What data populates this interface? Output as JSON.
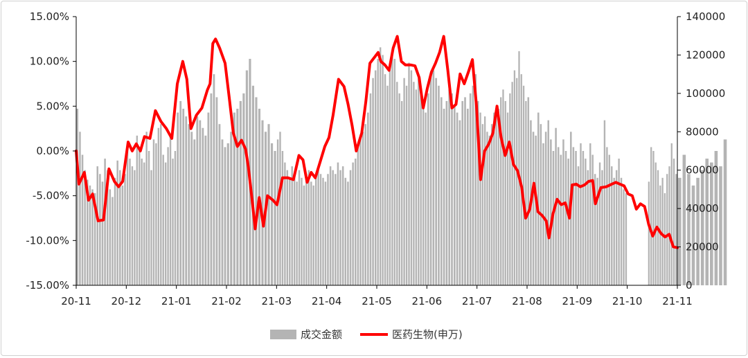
{
  "chart_data": {
    "type": "bar+line",
    "title": "",
    "xlabel": "",
    "ylabel_left": "",
    "ylabel_right": "",
    "left_axis": {
      "min": -15,
      "max": 15,
      "step": 5,
      "tick_labels": [
        "-15.00%",
        "-10.00%",
        "-5.00%",
        "0.00%",
        "5.00%",
        "10.00%",
        "15.00%"
      ]
    },
    "right_axis": {
      "min": 0,
      "max": 140000,
      "step": 20000,
      "tick_labels": [
        "0",
        "20000",
        "40000",
        "60000",
        "80000",
        "100000",
        "120000",
        "140000"
      ]
    },
    "x_tick_labels": [
      "20-11",
      "20-12",
      "21-01",
      "21-02",
      "21-03",
      "21-04",
      "21-05",
      "21-06",
      "21-07",
      "21-08",
      "21-09",
      "21-10",
      "21-11"
    ],
    "grid": false,
    "legend": {
      "position": "bottom-center",
      "items": [
        {
          "label": "成交金额",
          "color": "#b4b4b4",
          "kind": "bar"
        },
        {
          "label": "医药生物(申万)",
          "color": "#ff0000",
          "kind": "line"
        }
      ]
    },
    "series": [
      {
        "name": "成交金额",
        "axis": "right",
        "kind": "bar",
        "color": "#b4b4b4",
        "month_values": [
          [
            92000,
            80000,
            68000,
            60000,
            55000,
            52000,
            50000,
            48000,
            62000,
            58000,
            54000,
            66000,
            60000,
            50000,
            46000,
            56000,
            65000,
            60000,
            52000,
            58000
          ],
          [
            70000,
            66000,
            62000,
            60000,
            78000,
            72000,
            66000,
            64000,
            80000,
            70000,
            60000,
            76000,
            74000,
            82000,
            84000,
            68000,
            64000,
            72000,
            78000,
            66000,
            70000
          ],
          [
            90000,
            96000,
            92000,
            88000,
            84000,
            80000,
            76000,
            88000,
            86000,
            82000,
            78000,
            90000,
            100000,
            110000,
            98000,
            84000,
            76000,
            72000
          ],
          [
            74000,
            80000,
            90000,
            92000,
            96000,
            100000,
            112000,
            118000,
            104000,
            98000,
            92000,
            86000,
            80000,
            84000,
            74000,
            70000
          ],
          [
            76000,
            80000,
            70000,
            64000,
            60000,
            56000,
            62000,
            58000,
            54000,
            60000,
            56000,
            52000,
            58000,
            60000,
            54000,
            52000,
            56000,
            62000,
            58000,
            56000,
            54000
          ],
          [
            58000,
            62000,
            60000,
            58000,
            64000,
            60000,
            62000,
            56000,
            54000,
            60000,
            64000,
            66000,
            72000,
            78000,
            80000,
            84000,
            90000,
            100000,
            108000,
            112000
          ],
          [
            118000,
            124000,
            120000,
            110000,
            104000,
            112000,
            122000,
            118000,
            106000,
            100000,
            96000,
            108000,
            104000,
            116000,
            112000,
            106000,
            102000,
            110000,
            100000,
            94000,
            90000
          ],
          [
            100000,
            110000,
            112000,
            108000,
            104000,
            98000,
            92000,
            96000,
            102000,
            100000,
            94000,
            90000,
            86000,
            96000,
            98000,
            92000,
            100000,
            104000,
            110000
          ],
          [
            96000,
            90000,
            84000,
            88000,
            80000,
            78000,
            84000,
            90000,
            88000,
            92000,
            98000,
            102000,
            96000,
            90000,
            100000,
            106000,
            112000,
            108000,
            122000,
            110000,
            104000,
            96000
          ],
          [
            98000,
            86000,
            80000,
            78000,
            90000,
            84000,
            74000,
            80000,
            86000,
            76000,
            70000,
            82000,
            72000,
            68000,
            76000,
            70000,
            66000,
            80000,
            72000,
            70000
          ],
          [
            62000,
            74000,
            70000,
            66000,
            60000,
            74000,
            68000,
            58000,
            56000,
            64000,
            60000,
            86000,
            72000,
            68000,
            62000,
            56000,
            60000,
            66000,
            56000,
            50000,
            48000
          ],
          [
            0,
            0,
            0,
            0,
            0,
            0,
            0,
            0,
            0,
            54000,
            72000,
            70000,
            64000,
            60000,
            52000,
            56000,
            48000,
            58000,
            62000,
            74000,
            66000,
            58000
          ],
          [
            56000,
            68000,
            58000,
            52000,
            56000,
            60000,
            66000,
            64000,
            70000,
            62000,
            76000
          ]
        ]
      },
      {
        "name": "医药生物(申万)",
        "axis": "left",
        "kind": "line",
        "color": "#ff0000",
        "points": [
          [
            0.0,
            0.0
          ],
          [
            0.1,
            -3.7
          ],
          [
            0.3,
            -2.4
          ],
          [
            0.45,
            -5.5
          ],
          [
            0.6,
            -4.8
          ],
          [
            0.8,
            -7.8
          ],
          [
            1.0,
            -7.7
          ],
          [
            1.2,
            -2.0
          ],
          [
            1.4,
            -3.4
          ],
          [
            1.55,
            -4.0
          ],
          [
            1.7,
            -3.4
          ],
          [
            1.9,
            1.0
          ],
          [
            2.05,
            0.0
          ],
          [
            2.2,
            0.8
          ],
          [
            2.35,
            0.0
          ],
          [
            2.5,
            1.6
          ],
          [
            2.7,
            1.4
          ],
          [
            2.9,
            4.5
          ],
          [
            3.1,
            3.3
          ],
          [
            3.3,
            2.5
          ],
          [
            3.5,
            1.4
          ],
          [
            3.7,
            7.5
          ],
          [
            3.9,
            10.0
          ],
          [
            4.05,
            8.0
          ],
          [
            4.2,
            2.5
          ],
          [
            4.4,
            4.0
          ],
          [
            4.6,
            4.8
          ],
          [
            4.8,
            6.8
          ],
          [
            4.9,
            7.5
          ],
          [
            5.0,
            12.0
          ],
          [
            5.1,
            12.5
          ],
          [
            5.25,
            11.5
          ],
          [
            5.45,
            9.8
          ],
          [
            5.6,
            6.0
          ],
          [
            5.75,
            2.0
          ],
          [
            5.9,
            0.5
          ],
          [
            6.05,
            1.2
          ],
          [
            6.2,
            0.2
          ],
          [
            6.3,
            -1.8
          ],
          [
            6.45,
            -5.8
          ],
          [
            6.55,
            -8.7
          ],
          [
            6.7,
            -5.2
          ],
          [
            6.85,
            -8.4
          ],
          [
            7.0,
            -5.0
          ],
          [
            7.2,
            -5.5
          ],
          [
            7.35,
            -6.0
          ],
          [
            7.55,
            -3.0
          ],
          [
            7.75,
            -3.0
          ],
          [
            7.95,
            -3.2
          ],
          [
            8.15,
            -0.5
          ],
          [
            8.3,
            -1.0
          ],
          [
            8.45,
            -3.5
          ],
          [
            8.6,
            -2.4
          ],
          [
            8.75,
            -3.0
          ],
          [
            8.95,
            -1.0
          ],
          [
            9.1,
            0.5
          ],
          [
            9.25,
            1.5
          ],
          [
            9.4,
            4.0
          ],
          [
            9.6,
            8.0
          ],
          [
            9.8,
            7.2
          ],
          [
            9.95,
            5.2
          ],
          [
            10.1,
            2.8
          ],
          [
            10.25,
            0.0
          ],
          [
            10.45,
            2.0
          ],
          [
            10.6,
            5.5
          ],
          [
            10.75,
            9.8
          ],
          [
            10.9,
            10.4
          ],
          [
            11.05,
            11.0
          ],
          [
            11.15,
            10.0
          ],
          [
            11.3,
            9.6
          ],
          [
            11.45,
            9.0
          ],
          [
            11.6,
            11.5
          ],
          [
            11.75,
            12.8
          ],
          [
            11.9,
            10.0
          ],
          [
            12.05,
            9.6
          ],
          [
            12.25,
            9.6
          ],
          [
            12.4,
            9.5
          ],
          [
            12.55,
            8.2
          ],
          [
            12.7,
            4.8
          ],
          [
            12.85,
            7.0
          ],
          [
            13.0,
            8.8
          ],
          [
            13.15,
            9.8
          ],
          [
            13.3,
            11.0
          ],
          [
            13.45,
            12.8
          ],
          [
            13.6,
            9.0
          ],
          [
            13.75,
            4.8
          ],
          [
            13.9,
            5.2
          ],
          [
            14.05,
            8.6
          ],
          [
            14.2,
            7.5
          ],
          [
            14.35,
            8.8
          ],
          [
            14.5,
            10.2
          ],
          [
            14.65,
            5.0
          ],
          [
            14.8,
            -3.2
          ],
          [
            14.95,
            0.0
          ],
          [
            15.1,
            0.8
          ],
          [
            15.25,
            2.0
          ],
          [
            15.4,
            5.0
          ],
          [
            15.55,
            1.5
          ],
          [
            15.7,
            -0.5
          ],
          [
            15.85,
            1.0
          ],
          [
            16.0,
            -1.5
          ],
          [
            16.15,
            -2.2
          ],
          [
            16.3,
            -4.0
          ],
          [
            16.45,
            -7.5
          ],
          [
            16.6,
            -6.5
          ],
          [
            16.75,
            -3.6
          ],
          [
            16.9,
            -6.8
          ],
          [
            17.05,
            -7.2
          ],
          [
            17.2,
            -7.8
          ],
          [
            17.3,
            -9.7
          ],
          [
            17.45,
            -7.0
          ],
          [
            17.6,
            -5.4
          ],
          [
            17.75,
            -6.0
          ],
          [
            17.9,
            -5.8
          ],
          [
            18.05,
            -7.5
          ],
          [
            18.15,
            -3.8
          ],
          [
            18.3,
            -3.7
          ],
          [
            18.45,
            -4.0
          ],
          [
            18.6,
            -3.8
          ],
          [
            18.75,
            -3.4
          ],
          [
            18.9,
            -3.3
          ],
          [
            19.0,
            -5.9
          ],
          [
            19.2,
            -4.1
          ],
          [
            19.4,
            -4.0
          ],
          [
            19.6,
            -3.7
          ],
          [
            19.75,
            -3.5
          ],
          [
            19.9,
            -3.7
          ],
          [
            20.05,
            -3.9
          ],
          [
            20.2,
            -4.8
          ],
          [
            20.35,
            -5.0
          ],
          [
            20.5,
            -6.5
          ],
          [
            20.65,
            -5.9
          ],
          [
            20.8,
            -6.2
          ],
          [
            20.95,
            -8.2
          ],
          [
            21.1,
            -9.5
          ],
          [
            21.25,
            -8.5
          ],
          [
            21.4,
            -9.2
          ],
          [
            21.55,
            -9.6
          ],
          [
            21.7,
            -9.3
          ],
          [
            21.85,
            -10.7
          ],
          [
            22.0,
            -10.8
          ]
        ]
      }
    ]
  }
}
